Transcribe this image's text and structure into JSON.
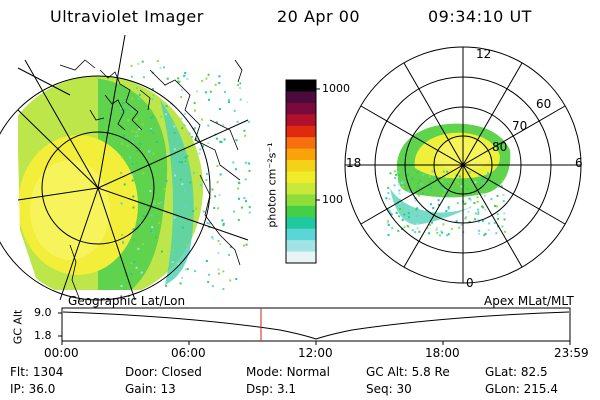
{
  "header": {
    "title": "Ultraviolet Imager",
    "date": "20 Apr 00",
    "time": "09:34:10 UT"
  },
  "colorbar": {
    "label": "photon cm⁻²s⁻¹",
    "ticks": [
      "1000",
      "100"
    ],
    "colors": [
      "#000000",
      "#4b0a3c",
      "#7a0a3c",
      "#b0102c",
      "#e02a10",
      "#f77010",
      "#f9a20a",
      "#f5d21a",
      "#f0ec2a",
      "#c8e83a",
      "#8ede3a",
      "#44cf48",
      "#1fc9a0",
      "#5ad6d6",
      "#a2e4e6",
      "#e8f4f6"
    ]
  },
  "geo_panel": {
    "caption": "Geographic Lat/Lon"
  },
  "polar_panel": {
    "caption": "Apex MLat/MLT",
    "mlt_labels": [
      "12",
      "18",
      "6",
      "0"
    ],
    "lat_labels": [
      "60",
      "70",
      "80"
    ]
  },
  "timeline": {
    "ylabel": "GC Alt",
    "y_ticks": [
      "9.0",
      "1.8"
    ],
    "x_ticks": [
      "00:00",
      "06:00",
      "12:00",
      "18:00",
      "23:59"
    ]
  },
  "info": [
    [
      {
        "label": "Flt:",
        "value": "1304"
      },
      {
        "label": "Door:",
        "value": "Closed"
      },
      {
        "label": "Mode:",
        "value": "Normal"
      },
      {
        "label": "GC Alt:",
        "value": "5.8 Re"
      },
      {
        "label": "GLat:",
        "value": "82.5"
      }
    ],
    [
      {
        "label": "IP:",
        "value": "36.0"
      },
      {
        "label": "Gain:",
        "value": "13"
      },
      {
        "label": "Dsp:",
        "value": "3.1"
      },
      {
        "label": "Seq:",
        "value": "30"
      },
      {
        "label": "GLon:",
        "value": "215.4"
      }
    ]
  ]
}
